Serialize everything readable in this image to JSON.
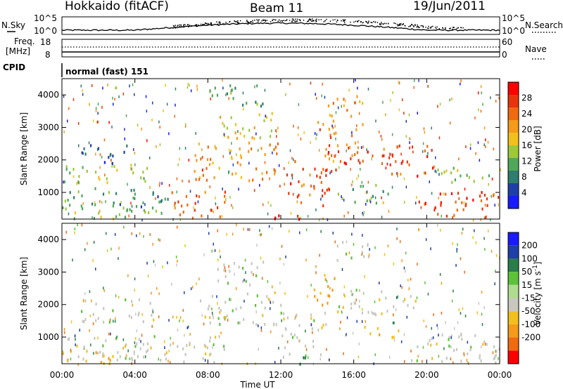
{
  "header": {
    "radar_title": "Hokkaido (fitACF)",
    "beam_label": "Beam 11",
    "date_label": "19/Jun/2011"
  },
  "status_panels": {
    "nsky_label": "N.Sky",
    "nsearch_label": "N.Search",
    "noise_ticks": [
      "10^5",
      "10^0"
    ],
    "freq_label_line1": "Freq.",
    "freq_label_line2": "[MHz]",
    "freq_ticks": [
      "18",
      "8"
    ],
    "nave_label": "Nave",
    "nave_ticks": [
      "60",
      "0"
    ],
    "cpid_label": "CPID",
    "cpid_value": "normal (fast) 151"
  },
  "colors": {
    "power_scale": [
      "#1a1aff",
      "#1f3fa8",
      "#2f7d6f",
      "#4fa85a",
      "#9cc83a",
      "#f2c01c",
      "#f59a1a",
      "#f06a10",
      "#e8340c",
      "#ff0000"
    ],
    "velocity_scale": [
      "#1a1aff",
      "#1f3fa8",
      "#2a7d4a",
      "#5cc23a",
      "#b0dc90",
      "#c8c8c0",
      "#f2c01c",
      "#f59a1a",
      "#f06a10",
      "#ff0000"
    ],
    "ground_scatter": "#c8c8c0"
  },
  "chart_data": [
    {
      "type": "heatmap",
      "panel": "power",
      "ylabel": "Slant Range [km]",
      "ylim": [
        180,
        4500
      ],
      "yticks": [
        1000,
        2000,
        3000,
        4000
      ],
      "xlim": [
        0,
        24
      ],
      "colorbar_label": "Power [dB]",
      "colorbar_ticks": [
        4,
        8,
        12,
        16,
        20,
        24,
        28
      ],
      "colorbar_range": [
        0,
        32
      ],
      "scatter_bands": [
        {
          "t0": 0.0,
          "t1": 5.9,
          "r0": 600,
          "r1": 1200,
          "level": 10
        },
        {
          "t0": 0.0,
          "t1": 4.8,
          "r0": 1300,
          "r1": 1900,
          "level": 14
        },
        {
          "t0": 1.0,
          "t1": 3.6,
          "r0": 1900,
          "r1": 2500,
          "level": 6
        },
        {
          "t0": 0.0,
          "t1": 6.0,
          "r0": 200,
          "r1": 600,
          "level": 13
        },
        {
          "t0": 5.9,
          "t1": 9.0,
          "r0": 250,
          "r1": 1100,
          "level": 24
        },
        {
          "t0": 7.2,
          "t1": 12.0,
          "r0": 1400,
          "r1": 2600,
          "level": 22
        },
        {
          "t0": 8.5,
          "t1": 11.5,
          "r0": 2600,
          "r1": 3500,
          "level": 17
        },
        {
          "t0": 11.5,
          "t1": 13.5,
          "r0": 200,
          "r1": 500,
          "level": 28
        },
        {
          "t0": 12.2,
          "t1": 15.0,
          "r0": 600,
          "r1": 2000,
          "level": 25
        },
        {
          "t0": 14.0,
          "t1": 16.5,
          "r0": 2000,
          "r1": 3300,
          "level": 23
        },
        {
          "t0": 14.5,
          "t1": 16.5,
          "r0": 3300,
          "r1": 4000,
          "level": 22
        },
        {
          "t0": 14.5,
          "t1": 18.2,
          "r0": 1900,
          "r1": 2300,
          "level": 27
        },
        {
          "t0": 17.5,
          "t1": 20.5,
          "r0": 1500,
          "r1": 2500,
          "level": 26
        },
        {
          "t0": 15.0,
          "t1": 18.0,
          "r0": 700,
          "r1": 1300,
          "level": 13
        },
        {
          "t0": 19.5,
          "t1": 24.0,
          "r0": 250,
          "r1": 1100,
          "level": 26
        },
        {
          "t0": 20.5,
          "t1": 24.0,
          "r0": 1300,
          "r1": 1800,
          "level": 15
        },
        {
          "t0": 8.0,
          "t1": 11.0,
          "r0": 3700,
          "r1": 4400,
          "level": 10
        }
      ]
    },
    {
      "type": "heatmap",
      "panel": "velocity",
      "xlabel": "Time UT",
      "ylabel": "Slant Range [km]",
      "ylim": [
        180,
        4500
      ],
      "yticks": [
        1000,
        2000,
        3000,
        4000
      ],
      "xlim": [
        0,
        24
      ],
      "xticks": [
        "00:00",
        "04:00",
        "08:00",
        "12:00",
        "16:00",
        "20:00",
        "00:00"
      ],
      "colorbar_label": "Velocity [m s^-1]",
      "colorbar_ticks": [
        200,
        100,
        50,
        15,
        -15,
        -50,
        -100,
        -200
      ],
      "scatter_bands": [
        {
          "t0": 0.0,
          "t1": 6.0,
          "r0": 250,
          "r1": 1100,
          "vel": 0
        },
        {
          "t0": 1.0,
          "t1": 5.0,
          "r0": 1500,
          "r1": 2200,
          "vel": 0
        },
        {
          "t0": 5.9,
          "t1": 9.0,
          "r0": 250,
          "r1": 1100,
          "vel": 0
        },
        {
          "t0": 7.5,
          "t1": 12.0,
          "r0": 1400,
          "r1": 2500,
          "vel": 0
        },
        {
          "t0": 8.5,
          "t1": 11.0,
          "r0": 2600,
          "r1": 3400,
          "vel": 0
        },
        {
          "t0": 12.0,
          "t1": 14.5,
          "r0": 400,
          "r1": 1800,
          "vel": 0
        },
        {
          "t0": 13.8,
          "t1": 15.2,
          "r0": 2000,
          "r1": 3000,
          "vel": -60
        },
        {
          "t0": 15.0,
          "t1": 17.0,
          "r0": 3400,
          "r1": 4000,
          "vel": 0
        },
        {
          "t0": 15.0,
          "t1": 19.5,
          "r0": 1700,
          "r1": 2500,
          "vel": 0
        },
        {
          "t0": 16.5,
          "t1": 18.5,
          "r0": 1000,
          "r1": 1400,
          "vel": -40
        },
        {
          "t0": 19.0,
          "t1": 24.0,
          "r0": 250,
          "r1": 1200,
          "vel": 0
        },
        {
          "t0": 12.5,
          "t1": 13.5,
          "r0": 200,
          "r1": 500,
          "vel": 60
        },
        {
          "t0": 0.0,
          "t1": 3.0,
          "r0": 200,
          "r1": 600,
          "vel": -40
        }
      ]
    }
  ]
}
